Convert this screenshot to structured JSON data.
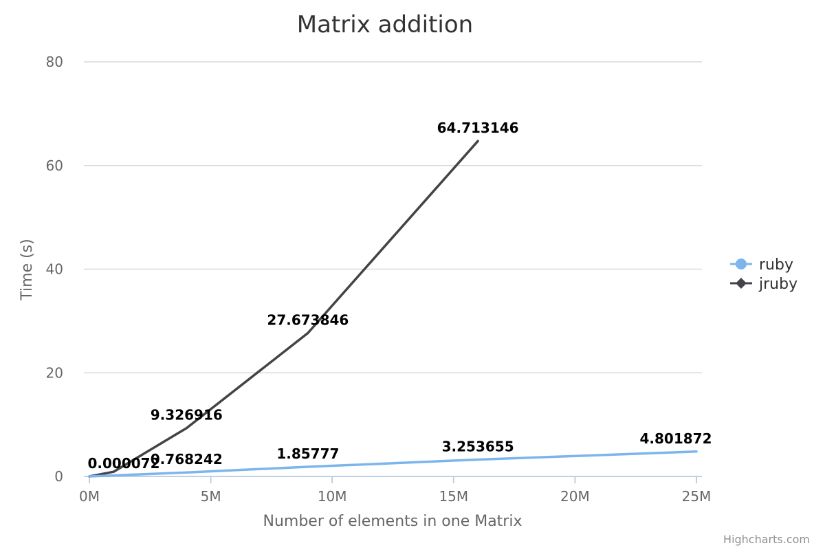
{
  "chart_data": {
    "type": "line",
    "title": "Matrix addition",
    "xlabel": "Number of elements in one Matrix",
    "ylabel": "Time (s)",
    "xlim": [
      0,
      25
    ],
    "ylim": [
      0,
      80
    ],
    "x_ticks": [
      {
        "value": 0,
        "label": "0M"
      },
      {
        "value": 5,
        "label": "5M"
      },
      {
        "value": 10,
        "label": "10M"
      },
      {
        "value": 15,
        "label": "15M"
      },
      {
        "value": 20,
        "label": "20M"
      },
      {
        "value": 25,
        "label": "25M"
      }
    ],
    "y_ticks": [
      {
        "value": 0,
        "label": "0"
      },
      {
        "value": 20,
        "label": "20"
      },
      {
        "value": 40,
        "label": "40"
      },
      {
        "value": 60,
        "label": "60"
      },
      {
        "value": 80,
        "label": "80"
      }
    ],
    "grid": true,
    "legend": "right",
    "series": [
      {
        "name": "ruby",
        "color": "#7cb5ec",
        "marker": "circle",
        "points": [
          {
            "x": 0,
            "y": 7.2e-05,
            "label": "0.000072"
          },
          {
            "x": 4,
            "y": 0.768242,
            "label": "0.768242"
          },
          {
            "x": 9,
            "y": 1.85777,
            "label": "1.85777"
          },
          {
            "x": 16,
            "y": 3.253655,
            "label": "3.253655"
          },
          {
            "x": 25,
            "y": 4.801872,
            "label": "4.801872"
          }
        ]
      },
      {
        "name": "jruby",
        "color": "#434348",
        "marker": "diamond",
        "points": [
          {
            "x": 0,
            "y": 7.2e-05,
            "label": null
          },
          {
            "x": 1,
            "y": 0.9,
            "label": null
          },
          {
            "x": 4,
            "y": 9.326916,
            "label": "9.326916"
          },
          {
            "x": 9,
            "y": 27.673846,
            "label": "27.673846"
          },
          {
            "x": 16,
            "y": 64.713146,
            "label": "64.713146"
          }
        ]
      }
    ],
    "credit": "Highcharts.com"
  }
}
